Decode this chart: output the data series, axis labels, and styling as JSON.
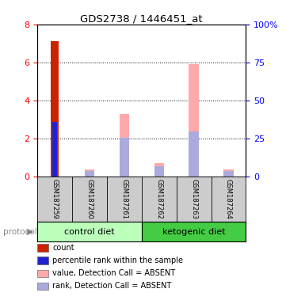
{
  "title": "GDS2738 / 1446451_at",
  "samples": [
    "GSM187259",
    "GSM187260",
    "GSM187261",
    "GSM187262",
    "GSM187263",
    "GSM187264"
  ],
  "left_ylim": [
    0,
    8
  ],
  "right_ylim": [
    0,
    100
  ],
  "left_yticks": [
    0,
    2,
    4,
    6,
    8
  ],
  "right_yticks": [
    0,
    25,
    50,
    75,
    100
  ],
  "right_yticklabels": [
    "0",
    "25",
    "50",
    "75",
    "100%"
  ],
  "red_bars": [
    7.1,
    0,
    0,
    0,
    0,
    0
  ],
  "blue_bars": [
    2.85,
    0,
    0,
    0,
    0,
    0
  ],
  "pink_bars": [
    0,
    0.35,
    3.3,
    0.7,
    5.9,
    0.35
  ],
  "lavender_bars": [
    0,
    0.27,
    2.05,
    0.52,
    2.35,
    0.27
  ],
  "red_color": "#cc2200",
  "blue_color": "#2222cc",
  "pink_color": "#ffaaaa",
  "lavender_color": "#aaaadd",
  "control_color": "#bbffbb",
  "ketogenic_color": "#44cc44",
  "protocol_label": "protocol",
  "control_label": "control diet",
  "ketogenic_label": "ketogenic diet",
  "legend_items": [
    {
      "label": "count",
      "color": "#cc2200"
    },
    {
      "label": "percentile rank within the sample",
      "color": "#2222cc"
    },
    {
      "label": "value, Detection Call = ABSENT",
      "color": "#ffaaaa"
    },
    {
      "label": "rank, Detection Call = ABSENT",
      "color": "#aaaadd"
    }
  ],
  "background_color": "#ffffff",
  "sample_box_color": "#cccccc"
}
